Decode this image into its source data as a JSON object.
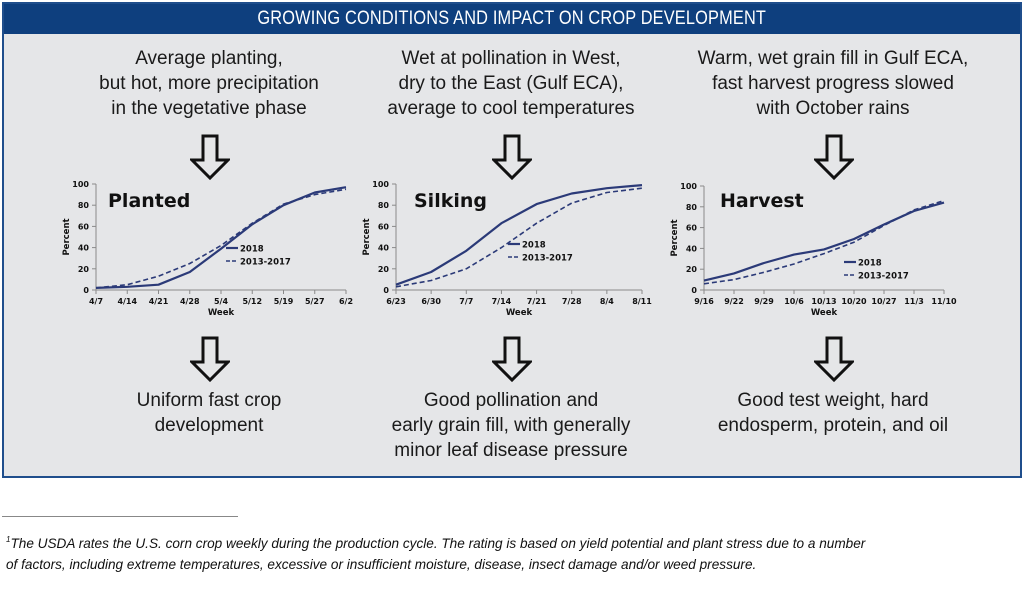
{
  "header": {
    "title": "GROWING CONDITIONS AND IMPACT ON CROP DEVELOPMENT"
  },
  "colors": {
    "title_bar": "#0e3f7e",
    "panel_bg": "#e5e6e8",
    "series": "#2b3a78"
  },
  "columns": [
    {
      "conditions": [
        "Average planting,",
        "but hot, more precipitation",
        "in the vegetative phase"
      ],
      "outcome": [
        "Uniform fast crop",
        "development"
      ]
    },
    {
      "conditions": [
        "Wet at pollination in West,",
        "dry to the East (Gulf ECA),",
        "average to cool temperatures"
      ],
      "outcome": [
        "Good pollination and",
        "early grain fill, with generally",
        "minor leaf disease pressure"
      ]
    },
    {
      "conditions": [
        "Warm, wet grain fill in Gulf ECA,",
        "fast harvest progress slowed",
        "with October rains"
      ],
      "outcome": [
        "Good test weight, hard",
        "endosperm, protein, and oil"
      ]
    }
  ],
  "chart_data": [
    {
      "type": "line",
      "title": "Planted",
      "xlabel": "Week",
      "ylabel": "Percent",
      "ylim": [
        0,
        100
      ],
      "yticks": [
        0,
        20,
        40,
        60,
        80,
        100
      ],
      "categories": [
        "4/7",
        "4/14",
        "4/21",
        "4/28",
        "5/4",
        "5/12",
        "5/19",
        "5/27",
        "6/2"
      ],
      "series": [
        {
          "name": "2018",
          "style": "solid",
          "values": [
            2,
            3,
            5,
            17,
            39,
            62,
            80,
            92,
            97
          ]
        },
        {
          "name": "2013-2017",
          "style": "dashed",
          "values": [
            2,
            5,
            13,
            25,
            42,
            63,
            81,
            90,
            95
          ]
        }
      ],
      "legend": "center-right",
      "grid": false
    },
    {
      "type": "line",
      "title": "Silking",
      "xlabel": "Week",
      "ylabel": "Percent",
      "ylim": [
        0,
        100
      ],
      "yticks": [
        0,
        20,
        40,
        60,
        80,
        100
      ],
      "categories": [
        "6/23",
        "6/30",
        "7/7",
        "7/14",
        "7/21",
        "7/28",
        "8/4",
        "8/11"
      ],
      "series": [
        {
          "name": "2018",
          "style": "solid",
          "values": [
            5,
            17,
            37,
            63,
            81,
            91,
            96,
            99
          ]
        },
        {
          "name": "2013-2017",
          "style": "dashed",
          "values": [
            3,
            9,
            20,
            40,
            63,
            82,
            92,
            96
          ]
        }
      ],
      "legend": "center-right",
      "grid": false
    },
    {
      "type": "line",
      "title": "Harvest",
      "xlabel": "Week",
      "ylabel": "Percent",
      "ylim": [
        0,
        100
      ],
      "yticks": [
        0,
        20,
        40,
        60,
        80,
        100
      ],
      "categories": [
        "9/16",
        "9/22",
        "9/29",
        "10/6",
        "10/13",
        "10/20",
        "10/27",
        "11/3",
        "11/10"
      ],
      "series": [
        {
          "name": "2018",
          "style": "solid",
          "values": [
            9,
            16,
            26,
            34,
            39,
            49,
            63,
            76,
            84
          ]
        },
        {
          "name": "2013-2017",
          "style": "dashed",
          "values": [
            6,
            10,
            17,
            25,
            35,
            46,
            62,
            77,
            86
          ]
        }
      ],
      "legend": "center-right",
      "grid": false
    }
  ],
  "footnote": {
    "marker": "1",
    "lines": [
      "The USDA rates the U.S. corn crop weekly during the production cycle. The rating is based on yield potential and plant stress due to a number",
      "of factors, including extreme temperatures, excessive or insufficient moisture, disease, insect damage and/or weed pressure."
    ]
  }
}
